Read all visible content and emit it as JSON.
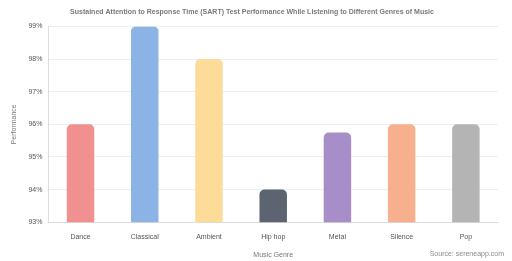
{
  "chart_data": {
    "type": "bar",
    "title": "Sustained Attention to Response Time (SART) Test Performance While Listening to Different Genres of Music",
    "x_label": "Music Genre",
    "y_label": "Performance",
    "source": "Source: sereneapp.com",
    "categories": [
      "Dance",
      "Classical",
      "Ambient",
      "Hip hop",
      "Metal",
      "Silence",
      "Pop"
    ],
    "values": [
      96,
      99,
      98,
      94,
      95.75,
      96,
      96
    ],
    "colors": [
      "#f0908f",
      "#8cb3e6",
      "#fddc9a",
      "#5b6470",
      "#a78ec8",
      "#f6b08e",
      "#b4b4b4"
    ],
    "ylim": [
      93,
      99
    ],
    "yticks": [
      {
        "value": 93,
        "label": "93%"
      },
      {
        "value": 94,
        "label": "94%"
      },
      {
        "value": 95,
        "label": "95%"
      },
      {
        "value": 96,
        "label": "96%"
      },
      {
        "value": 97,
        "label": "97%"
      },
      {
        "value": 98,
        "label": "98%"
      },
      {
        "value": 99,
        "label": "99%"
      }
    ],
    "grid": true
  }
}
